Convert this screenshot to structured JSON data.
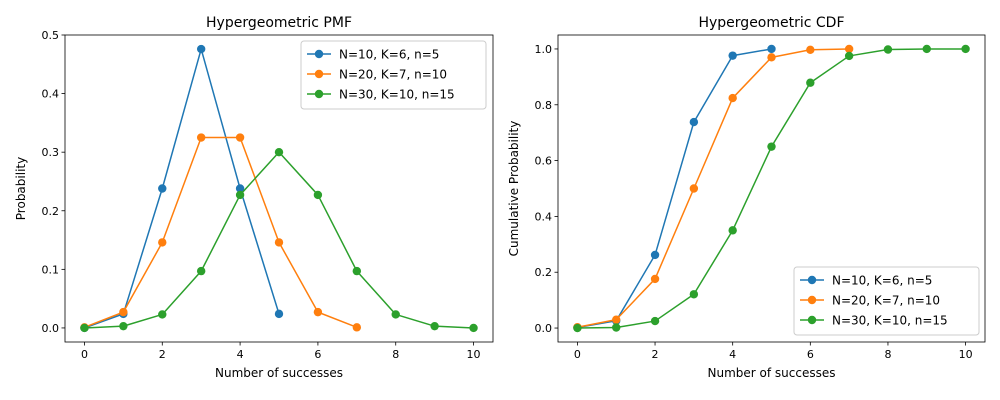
{
  "chart_data": [
    {
      "type": "line",
      "title": "Hypergeometric PMF",
      "xlabel": "Number of successes",
      "ylabel": "Probability",
      "xlim": [
        -0.5,
        10.5
      ],
      "ylim": [
        -0.024,
        0.5
      ],
      "xticks": [
        0,
        2,
        4,
        6,
        8,
        10
      ],
      "xtick_labels": [
        "0",
        "2",
        "4",
        "6",
        "8",
        "10"
      ],
      "yticks": [
        0,
        0.1,
        0.2,
        0.3,
        0.4,
        0.5
      ],
      "ytick_labels": [
        "0.0",
        "0.1",
        "0.2",
        "0.3",
        "0.4",
        "0.5"
      ],
      "grid": false,
      "legend_position": "upper right",
      "series": [
        {
          "name": "N=10, K=6, n=5",
          "color": "#1f77b4",
          "x": [
            0,
            1,
            2,
            3,
            4,
            5
          ],
          "y": [
            0,
            0.024,
            0.238,
            0.476,
            0.238,
            0.024
          ]
        },
        {
          "name": "N=20, K=7, n=10",
          "color": "#ff7f0e",
          "x": [
            0,
            1,
            2,
            3,
            4,
            5,
            6,
            7
          ],
          "y": [
            0.001,
            0.027,
            0.146,
            0.325,
            0.325,
            0.146,
            0.027,
            0.001
          ]
        },
        {
          "name": "N=30, K=10, n=15",
          "color": "#2ca02c",
          "x": [
            0,
            1,
            2,
            3,
            4,
            5,
            6,
            7,
            8,
            9,
            10
          ],
          "y": [
            0,
            0.003,
            0.023,
            0.097,
            0.227,
            0.3,
            0.227,
            0.097,
            0.023,
            0.003,
            0
          ]
        }
      ]
    },
    {
      "type": "line",
      "title": "Hypergeometric CDF",
      "xlabel": "Number of successes",
      "ylabel": "Cumulative Probability",
      "xlim": [
        -0.5,
        10.5
      ],
      "ylim": [
        -0.05,
        1.05
      ],
      "xticks": [
        0,
        2,
        4,
        6,
        8,
        10
      ],
      "xtick_labels": [
        "0",
        "2",
        "4",
        "6",
        "8",
        "10"
      ],
      "yticks": [
        0,
        0.2,
        0.4,
        0.6,
        0.8,
        1.0
      ],
      "ytick_labels": [
        "0.0",
        "0.2",
        "0.4",
        "0.6",
        "0.8",
        "1.0"
      ],
      "grid": false,
      "legend_position": "lower right",
      "series": [
        {
          "name": "N=10, K=6, n=5",
          "color": "#1f77b4",
          "x": [
            0,
            1,
            2,
            3,
            4,
            5
          ],
          "y": [
            0.002,
            0.026,
            0.262,
            0.738,
            0.976,
            1.0
          ]
        },
        {
          "name": "N=20, K=7, n=10",
          "color": "#ff7f0e",
          "x": [
            0,
            1,
            2,
            3,
            4,
            5,
            6,
            7
          ],
          "y": [
            0.003,
            0.03,
            0.176,
            0.5,
            0.824,
            0.97,
            0.997,
            1.0
          ]
        },
        {
          "name": "N=30, K=10, n=15",
          "color": "#2ca02c",
          "x": [
            0,
            1,
            2,
            3,
            4,
            5,
            6,
            7,
            8,
            9,
            10
          ],
          "y": [
            0,
            0.002,
            0.025,
            0.121,
            0.35,
            0.65,
            0.879,
            0.975,
            0.998,
            1.0,
            1.0
          ]
        }
      ]
    }
  ]
}
